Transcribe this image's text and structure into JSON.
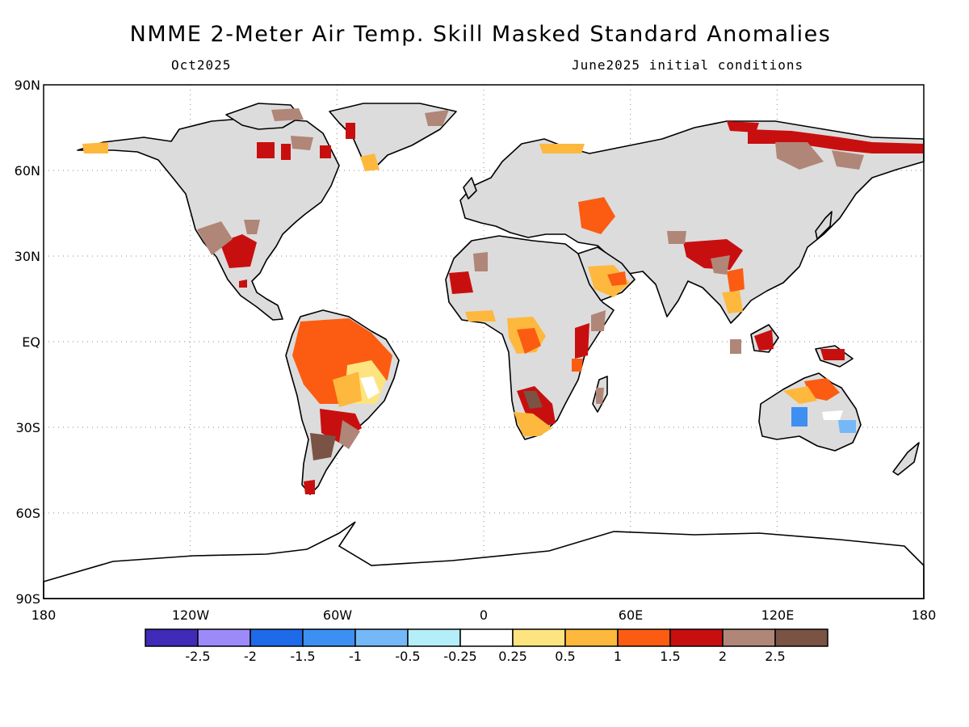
{
  "header": {
    "title": "NMME 2-Meter Air Temp. Skill Masked Standard Anomalies",
    "valid_month": "Oct2025",
    "initial_conditions": "June2025 initial conditions"
  },
  "map": {
    "projection": "equirectangular",
    "lon_range": [
      -180,
      180
    ],
    "lat_range": [
      -90,
      90
    ],
    "lat_labels": [
      "90N",
      "60N",
      "30N",
      "EQ",
      "30S",
      "60S",
      "90S"
    ],
    "lat_values": [
      90,
      60,
      30,
      0,
      -30,
      -60,
      -90
    ],
    "lon_labels": [
      "180",
      "120W",
      "60W",
      "0",
      "60E",
      "120E",
      "180"
    ],
    "lon_values": [
      -180,
      -120,
      -60,
      0,
      60,
      120,
      180
    ],
    "land_color": "#dcdcdc"
  },
  "colorbar": {
    "colors": [
      "#3f2bb8",
      "#9b8af8",
      "#1f6ae8",
      "#3d8ff2",
      "#75b8f8",
      "#b4eef8",
      "#ffffff",
      "#fee480",
      "#fdb83d",
      "#fb5c12",
      "#c80f0f",
      "#b08678",
      "#7a5345"
    ],
    "labels": [
      "-2.5",
      "-2",
      "-1.5",
      "-1",
      "-0.5",
      "-0.25",
      "0.25",
      "0.5",
      "1",
      "1.5",
      "2",
      "2.5"
    ]
  }
}
